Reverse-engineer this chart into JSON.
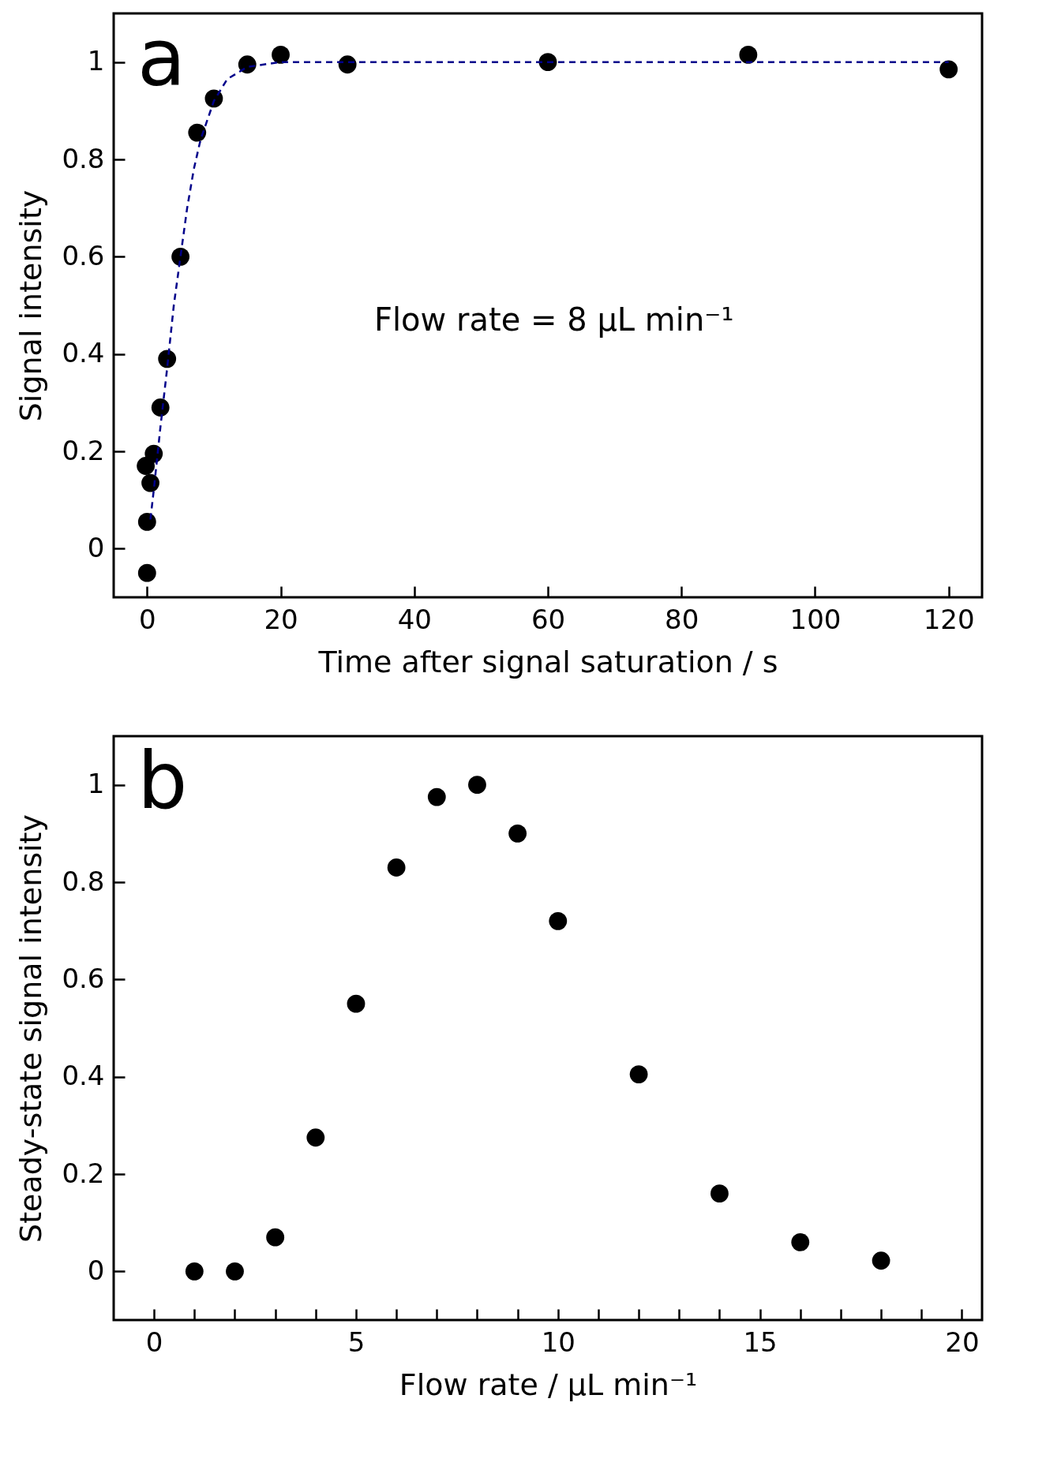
{
  "chart_data": [
    {
      "type": "scatter",
      "xlabel": "Time after signal saturation / s",
      "ylabel": "Signal intensity",
      "annotations": [
        "a",
        "Flow rate = 8 μL min⁻¹"
      ],
      "xlim": [
        -5,
        125
      ],
      "xticks": [
        0,
        20,
        40,
        60,
        80,
        100,
        120
      ],
      "ylim": [
        -0.1,
        1.1
      ],
      "yticks": [
        0,
        0.2,
        0.4,
        0.6,
        0.8,
        1
      ],
      "grid": false,
      "marker": "circle",
      "series": [
        {
          "type": "scatter",
          "color": "#000000",
          "x": [
            0,
            0,
            -0.2,
            0.5,
            1,
            2,
            3,
            5,
            7.5,
            10,
            15,
            20,
            30,
            60,
            90,
            120
          ],
          "values": [
            -0.05,
            0.055,
            0.17,
            0.135,
            0.195,
            0.29,
            0.39,
            0.6,
            0.855,
            0.925,
            0.995,
            1.015,
            0.995,
            1.0,
            1.015,
            0.985
          ]
        },
        {
          "type": "line",
          "color": "#00008b",
          "line_style": "dashed",
          "marker": "none",
          "x": [
            0.5,
            1,
            2,
            3,
            4,
            5,
            6,
            7,
            8,
            10,
            12,
            15,
            20,
            120
          ],
          "values": [
            0.06,
            0.12,
            0.25,
            0.37,
            0.5,
            0.6,
            0.7,
            0.78,
            0.84,
            0.92,
            0.965,
            0.99,
            1.0,
            1.0
          ]
        }
      ]
    },
    {
      "type": "scatter",
      "xlabel": "Flow rate / μL min⁻¹",
      "ylabel": "Steady-state signal intensity",
      "annotations": [
        "b"
      ],
      "xlim": [
        -1,
        20.5
      ],
      "xticks": [
        0,
        {
          "value": 1,
          "label": null
        },
        {
          "value": 2,
          "label": null
        },
        {
          "value": 3,
          "label": null
        },
        {
          "value": 4,
          "label": null
        },
        5,
        {
          "value": 6,
          "label": null
        },
        {
          "value": 7,
          "label": null
        },
        {
          "value": 8,
          "label": null
        },
        {
          "value": 9,
          "label": null
        },
        10,
        {
          "value": 11,
          "label": null
        },
        {
          "value": 12,
          "label": null
        },
        {
          "value": 13,
          "label": null
        },
        {
          "value": 14,
          "label": null
        },
        15,
        {
          "value": 16,
          "label": null
        },
        {
          "value": 17,
          "label": null
        },
        {
          "value": 18,
          "label": null
        },
        {
          "value": 19,
          "label": null
        },
        20
      ],
      "ylim": [
        -0.1,
        1.1
      ],
      "yticks": [
        0,
        0.2,
        0.4,
        0.6,
        0.8,
        1
      ],
      "grid": false,
      "marker": "circle",
      "series": [
        {
          "type": "scatter",
          "color": "#000000",
          "x": [
            1,
            2,
            3,
            4,
            5,
            6,
            7,
            8,
            9,
            10,
            12,
            14,
            16,
            18
          ],
          "values": [
            0,
            0,
            0.07,
            0.275,
            0.55,
            0.83,
            0.975,
            1.0,
            0.9,
            0.72,
            0.405,
            0.16,
            0.06,
            0.022
          ]
        }
      ]
    }
  ]
}
